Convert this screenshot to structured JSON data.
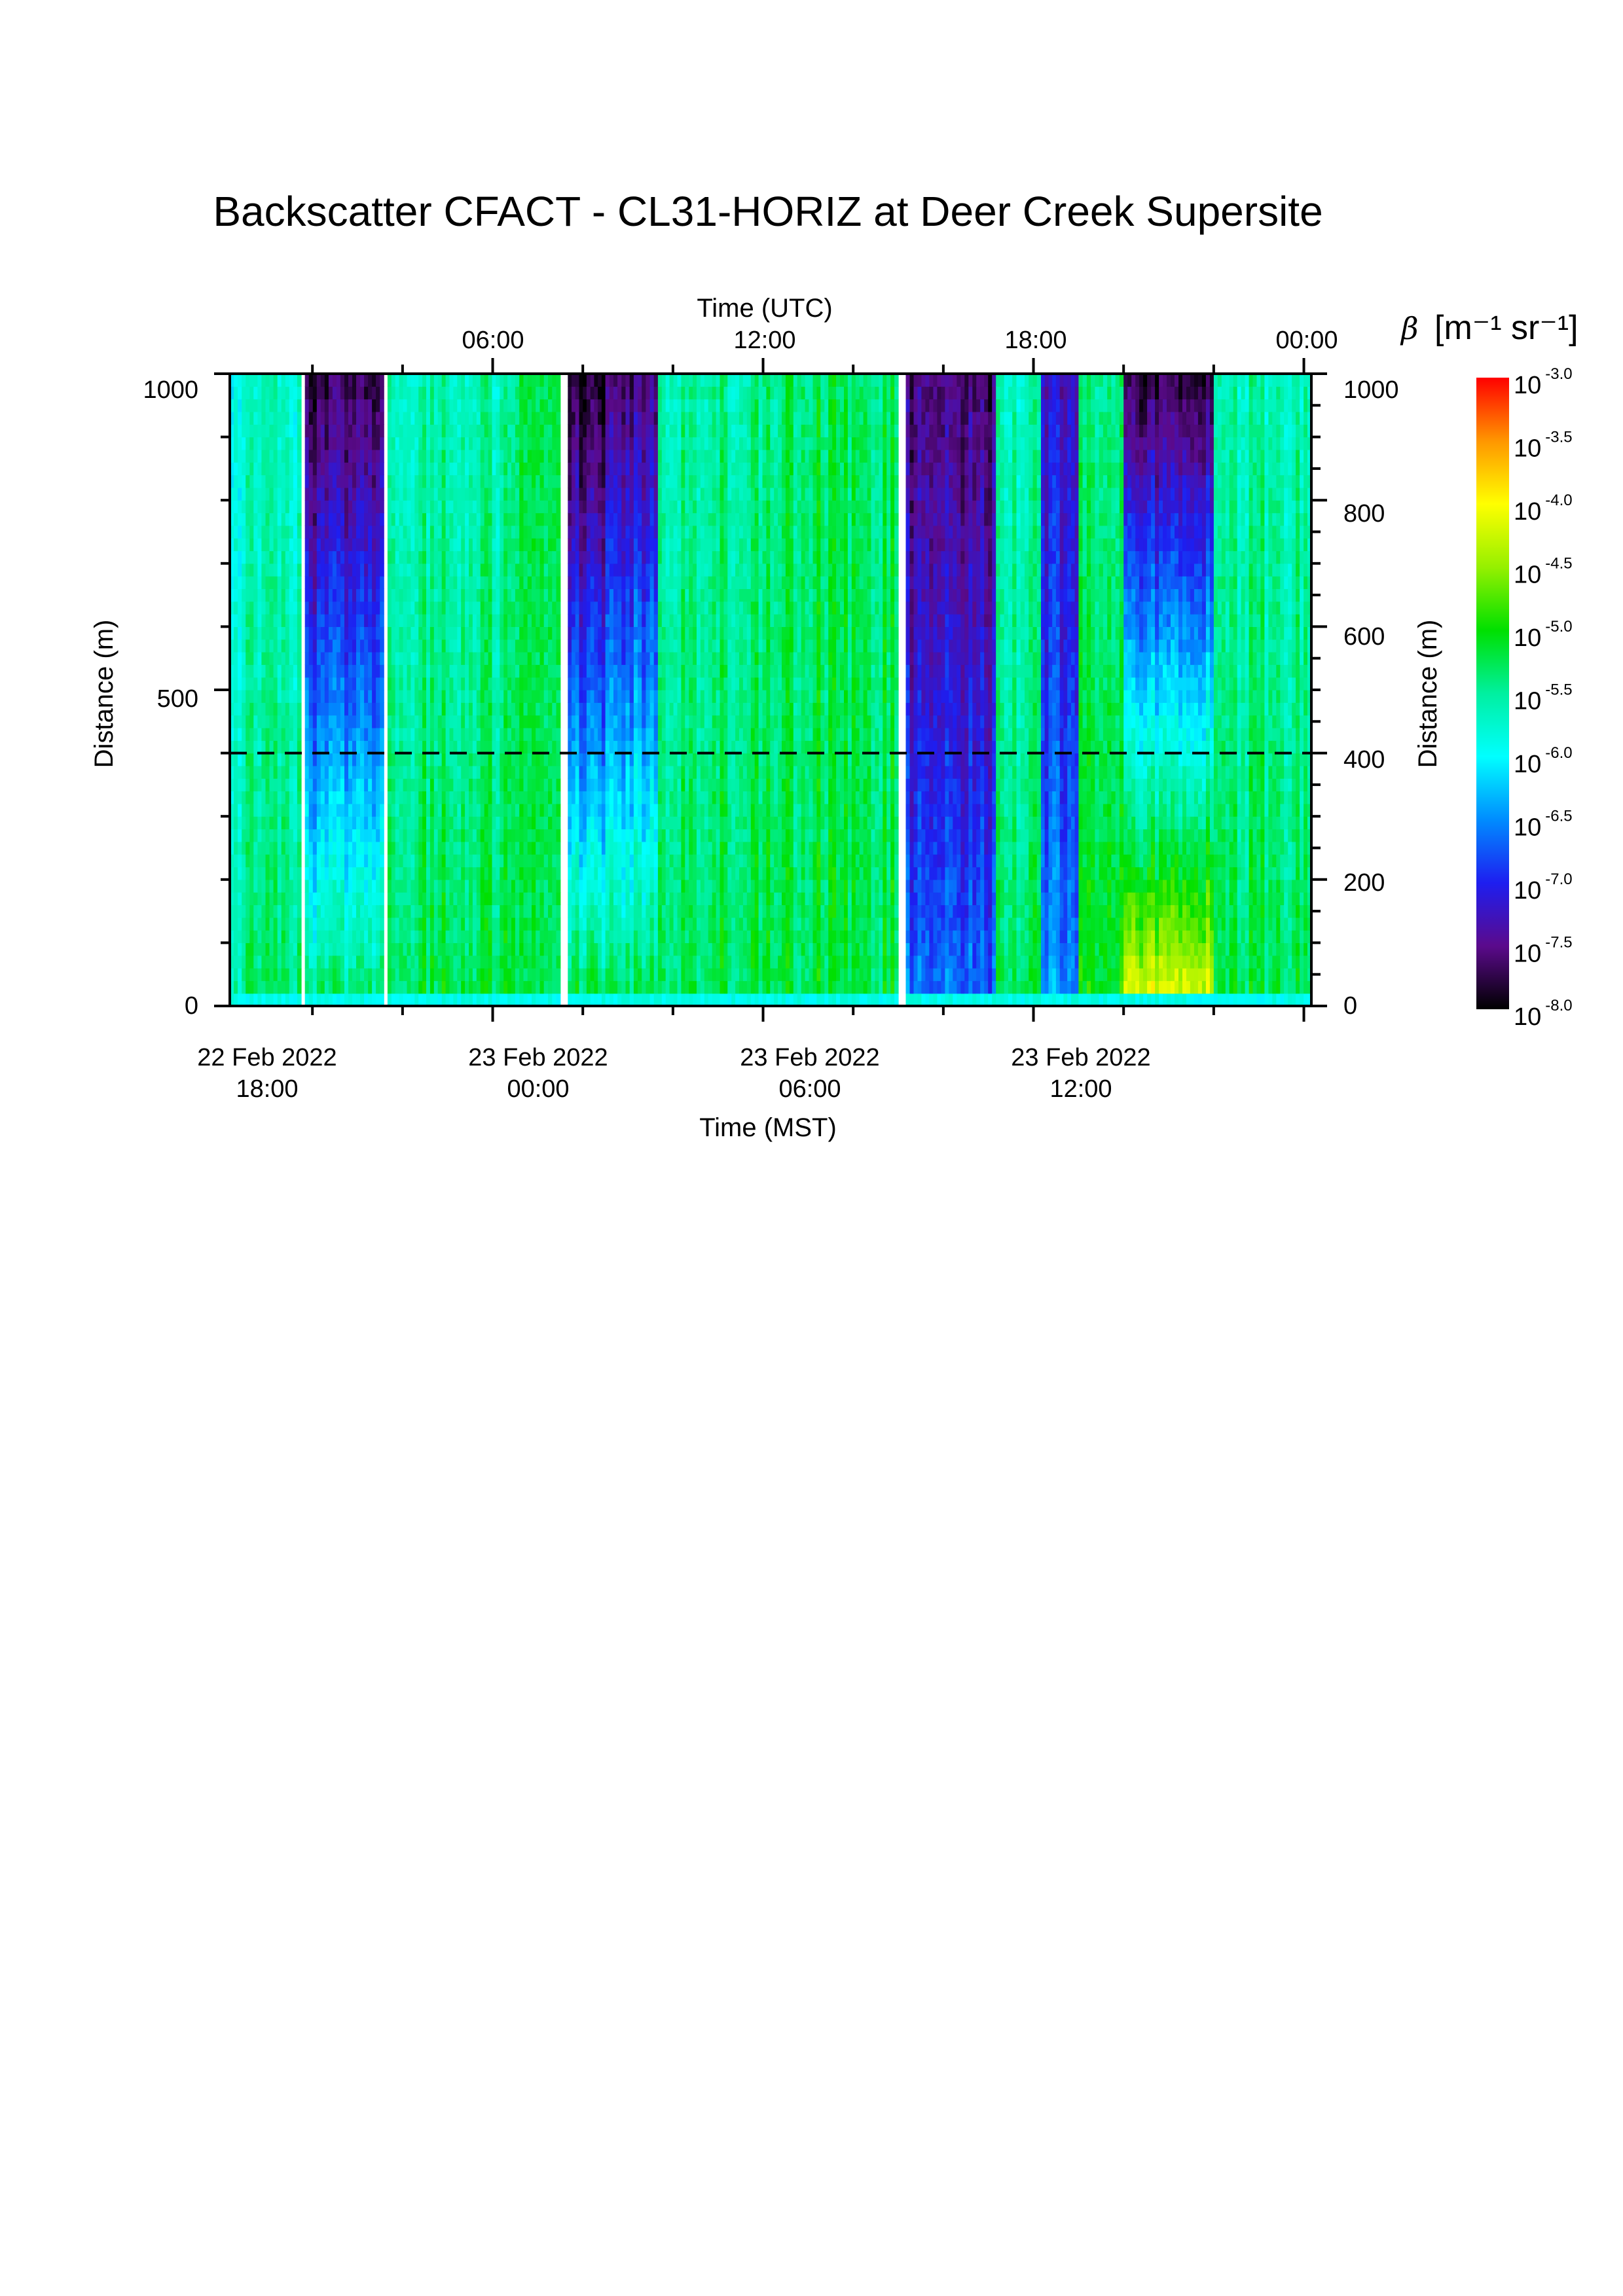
{
  "chart_data": {
    "type": "heatmap",
    "title": "Backscatter CFACT - CL31-HORIZ at Deer Creek Supersite",
    "x_bottom": {
      "label": "Time (MST)",
      "ticks": [
        {
          "date": "22 Feb 2022",
          "time": "18:00"
        },
        {
          "date": "23 Feb 2022",
          "time": "00:00"
        },
        {
          "date": "23 Feb 2022",
          "time": "06:00"
        },
        {
          "date": "23 Feb 2022",
          "time": "12:00"
        }
      ]
    },
    "x_top": {
      "label": "Time (UTC)",
      "ticks": [
        "06:00",
        "12:00",
        "18:00",
        "00:00"
      ]
    },
    "y_left": {
      "label": "Distance (m)",
      "ticks": [
        "0",
        "500",
        "1000"
      ],
      "range": [
        0,
        1000
      ]
    },
    "y_right": {
      "label": "Distance (m)",
      "ticks": [
        "0",
        "200",
        "400",
        "600",
        "800",
        "1000"
      ],
      "range": [
        0,
        1000
      ]
    },
    "time_range_utc": [
      "2022-02-23 00:10",
      "2022-02-24 00:10"
    ],
    "reference_line": {
      "distance_m": 400,
      "style": "dashed"
    },
    "colorbar": {
      "label_symbol": "β",
      "label_units": "[m⁻¹ sr⁻¹]",
      "scale": "log10",
      "range_exponent": [
        -8.0,
        -3.0
      ],
      "tick_base": "10",
      "tick_exponents": [
        "-3.0",
        "-3.5",
        "-4.0",
        "-4.5",
        "-5.0",
        "-5.5",
        "-6.0",
        "-6.5",
        "-7.0",
        "-7.5",
        "-8.0"
      ],
      "colormap": [
        "#000000",
        "#5b0a8c",
        "#1e1ef0",
        "#008cff",
        "#00ffff",
        "#00f0a0",
        "#00e000",
        "#96f000",
        "#ffff00",
        "#ff9600",
        "#ff0000"
      ]
    },
    "time_periods": [
      {
        "utc_start": "00:10",
        "utc_end": "01:45",
        "log10_beta_low_range": -5.4,
        "log10_beta_upper_range": -5.8
      },
      {
        "utc_start": "01:50",
        "utc_end": "03:35",
        "log10_beta_low_range": -5.3,
        "log10_beta_upper_range": -7.8
      },
      {
        "utc_start": "03:40",
        "utc_end": "06:30",
        "log10_beta_low_range": -5.2,
        "log10_beta_upper_range": -5.6
      },
      {
        "utc_start": "06:30",
        "utc_end": "07:30",
        "log10_beta_low_range": -5.2,
        "log10_beta_upper_range": -5.2
      },
      {
        "utc_start": "07:40",
        "utc_end": "08:30",
        "log10_beta_low_range": -5.1,
        "log10_beta_upper_range": -7.9
      },
      {
        "utc_start": "08:30",
        "utc_end": "09:40",
        "log10_beta_low_range": -5.1,
        "log10_beta_upper_range": -7.6
      },
      {
        "utc_start": "09:40",
        "utc_end": "12:30",
        "log10_beta_low_range": -5.2,
        "log10_beta_upper_range": -5.5
      },
      {
        "utc_start": "12:30",
        "utc_end": "15:00",
        "log10_beta_low_range": -5.2,
        "log10_beta_upper_range": -5.3
      },
      {
        "utc_start": "15:10",
        "utc_end": "17:10",
        "log10_beta_low_range": -6.6,
        "log10_beta_upper_range": -7.6
      },
      {
        "utc_start": "17:10",
        "utc_end": "18:10",
        "log10_beta_low_range": -5.2,
        "log10_beta_upper_range": -5.6
      },
      {
        "utc_start": "18:10",
        "utc_end": "19:00",
        "log10_beta_low_range": -6.4,
        "log10_beta_upper_range": -7.2
      },
      {
        "utc_start": "19:00",
        "utc_end": "20:00",
        "log10_beta_low_range": -5.0,
        "log10_beta_upper_range": -5.4
      },
      {
        "utc_start": "20:00",
        "utc_end": "22:00",
        "log10_beta_low_range": -4.0,
        "log10_beta_upper_range": -7.8
      },
      {
        "utc_start": "22:00",
        "utc_end": "00:10",
        "log10_beta_low_range": -5.2,
        "log10_beta_upper_range": -5.6
      }
    ]
  }
}
